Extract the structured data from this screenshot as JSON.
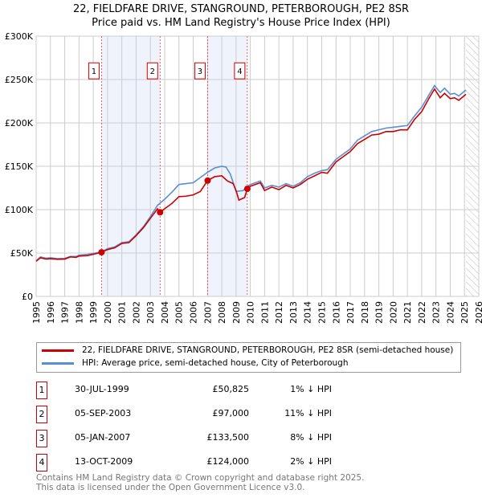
{
  "title": "22, FIELDFARE DRIVE, STANGROUND, PETERBOROUGH, PE2 8SR",
  "subtitle": "Price paid vs. HM Land Registry's House Price Index (HPI)",
  "chart_data": {
    "type": "line",
    "title": "22, FIELDFARE DRIVE, STANGROUND, PETERBOROUGH, PE2 8SR",
    "subtitle": "Price paid vs. HM Land Registry's House Price Index (HPI)",
    "xlim": [
      1995,
      2026
    ],
    "ylim": [
      0,
      300000
    ],
    "x_ticks": [
      "1995",
      "1996",
      "1997",
      "1998",
      "1999",
      "2000",
      "2001",
      "2002",
      "2003",
      "2004",
      "2005",
      "2006",
      "2007",
      "2008",
      "2009",
      "2010",
      "2011",
      "2012",
      "2013",
      "2014",
      "2015",
      "2016",
      "2017",
      "2018",
      "2019",
      "2020",
      "2021",
      "2022",
      "2023",
      "2024",
      "2025",
      "2026"
    ],
    "y_ticks": [
      {
        "v": 0,
        "label": "£0"
      },
      {
        "v": 50000,
        "label": "£50K"
      },
      {
        "v": 100000,
        "label": "£100K"
      },
      {
        "v": 150000,
        "label": "£150K"
      },
      {
        "v": 200000,
        "label": "£200K"
      },
      {
        "v": 250000,
        "label": "£250K"
      },
      {
        "v": 300000,
        "label": "£300K"
      }
    ],
    "grid": true,
    "shaded_periods": [
      [
        1999.58,
        2003.68
      ],
      [
        2007.01,
        2009.79
      ]
    ],
    "forecast_hatch_from": 2025.1,
    "series": [
      {
        "name": "22, FIELDFARE DRIVE, STANGROUND, PETERBOROUGH, PE2 8SR (semi-detached house)",
        "color": "#cc0000",
        "points": [
          [
            1995,
            40500
          ],
          [
            1995.3,
            44500
          ],
          [
            1995.7,
            43000
          ],
          [
            1996,
            43500
          ],
          [
            1996.5,
            42800
          ],
          [
            1997,
            43000
          ],
          [
            1997.4,
            45500
          ],
          [
            1997.8,
            45000
          ],
          [
            1998,
            46500
          ],
          [
            1998.6,
            47000
          ],
          [
            1999,
            48500
          ],
          [
            1999.58,
            50825
          ],
          [
            2000,
            54000
          ],
          [
            2000.5,
            56000
          ],
          [
            2001,
            61000
          ],
          [
            2001.5,
            62000
          ],
          [
            2002,
            70000
          ],
          [
            2002.5,
            79000
          ],
          [
            2003,
            90000
          ],
          [
            2003.5,
            101000
          ],
          [
            2003.68,
            97000
          ],
          [
            2004,
            101000
          ],
          [
            2004.5,
            107000
          ],
          [
            2005,
            115000
          ],
          [
            2005.5,
            115500
          ],
          [
            2006,
            117000
          ],
          [
            2006.5,
            121000
          ],
          [
            2007.01,
            133500
          ],
          [
            2007.5,
            138000
          ],
          [
            2008,
            139000
          ],
          [
            2008.4,
            133000
          ],
          [
            2008.8,
            130000
          ],
          [
            2009,
            122000
          ],
          [
            2009.2,
            111000
          ],
          [
            2009.6,
            114000
          ],
          [
            2009.79,
            124000
          ],
          [
            2010,
            127000
          ],
          [
            2010.7,
            131000
          ],
          [
            2011,
            122000
          ],
          [
            2011.5,
            126000
          ],
          [
            2012,
            123000
          ],
          [
            2012.5,
            128000
          ],
          [
            2013,
            125000
          ],
          [
            2013.5,
            129000
          ],
          [
            2014,
            135000
          ],
          [
            2014.5,
            139000
          ],
          [
            2015,
            143000
          ],
          [
            2015.4,
            142000
          ],
          [
            2016,
            155000
          ],
          [
            2016.5,
            161000
          ],
          [
            2017,
            167000
          ],
          [
            2017.5,
            176000
          ],
          [
            2018,
            181000
          ],
          [
            2018.5,
            186000
          ],
          [
            2019,
            187000
          ],
          [
            2019.5,
            190000
          ],
          [
            2020,
            190000
          ],
          [
            2020.5,
            192000
          ],
          [
            2021,
            192000
          ],
          [
            2021.5,
            204000
          ],
          [
            2022,
            213000
          ],
          [
            2022.5,
            228000
          ],
          [
            2022.9,
            239000
          ],
          [
            2023.3,
            229000
          ],
          [
            2023.6,
            234000
          ],
          [
            2024,
            228000
          ],
          [
            2024.3,
            229000
          ],
          [
            2024.6,
            226000
          ],
          [
            2025.1,
            233000
          ]
        ]
      },
      {
        "name": "HPI: Average price, semi-detached house, City of Peterborough",
        "color": "#5b8fd4",
        "points": [
          [
            1995,
            41000
          ],
          [
            1995.3,
            45500
          ],
          [
            1995.7,
            44000
          ],
          [
            1996,
            44500
          ],
          [
            1996.5,
            43500
          ],
          [
            1997,
            43800
          ],
          [
            1997.4,
            46000
          ],
          [
            1997.8,
            46000
          ],
          [
            1998,
            47500
          ],
          [
            1998.6,
            48500
          ],
          [
            1999,
            49500
          ],
          [
            1999.58,
            51300
          ],
          [
            2000,
            55000
          ],
          [
            2000.5,
            57000
          ],
          [
            2001,
            62000
          ],
          [
            2001.5,
            63000
          ],
          [
            2002,
            71000
          ],
          [
            2002.5,
            80000
          ],
          [
            2003,
            92000
          ],
          [
            2003.5,
            105000
          ],
          [
            2004,
            112000
          ],
          [
            2004.5,
            120000
          ],
          [
            2005,
            129000
          ],
          [
            2005.5,
            130000
          ],
          [
            2006,
            131000
          ],
          [
            2006.5,
            137000
          ],
          [
            2007,
            143000
          ],
          [
            2007.5,
            148000
          ],
          [
            2008,
            150000
          ],
          [
            2008.3,
            149000
          ],
          [
            2008.6,
            141000
          ],
          [
            2009,
            121000
          ],
          [
            2009.5,
            122000
          ],
          [
            2009.79,
            126500
          ],
          [
            2010,
            129000
          ],
          [
            2010.7,
            133000
          ],
          [
            2011,
            125000
          ],
          [
            2011.5,
            128000
          ],
          [
            2012,
            126000
          ],
          [
            2012.5,
            130000
          ],
          [
            2013,
            127000
          ],
          [
            2013.5,
            131000
          ],
          [
            2014,
            138000
          ],
          [
            2014.5,
            142000
          ],
          [
            2015,
            145000
          ],
          [
            2015.4,
            146000
          ],
          [
            2016,
            158000
          ],
          [
            2016.5,
            164000
          ],
          [
            2017,
            170000
          ],
          [
            2017.5,
            180000
          ],
          [
            2018,
            185000
          ],
          [
            2018.5,
            190000
          ],
          [
            2019,
            192000
          ],
          [
            2019.5,
            194000
          ],
          [
            2020,
            195000
          ],
          [
            2020.5,
            196000
          ],
          [
            2021,
            197000
          ],
          [
            2021.5,
            208000
          ],
          [
            2022,
            218000
          ],
          [
            2022.5,
            232000
          ],
          [
            2022.9,
            243000
          ],
          [
            2023.3,
            235000
          ],
          [
            2023.6,
            240000
          ],
          [
            2024,
            233000
          ],
          [
            2024.3,
            234000
          ],
          [
            2024.6,
            231000
          ],
          [
            2025.1,
            238000
          ]
        ]
      }
    ],
    "sales": [
      {
        "n": "1",
        "x": 1999.58,
        "value": 50825,
        "date": "30-JUL-1999",
        "price": "£50,825",
        "diff": "1% ↓ HPI"
      },
      {
        "n": "2",
        "x": 2003.68,
        "value": 97000,
        "date": "05-SEP-2003",
        "price": "£97,000",
        "diff": "11% ↓ HPI"
      },
      {
        "n": "3",
        "x": 2007.01,
        "value": 133500,
        "date": "05-JAN-2007",
        "price": "£133,500",
        "diff": "8% ↓ HPI"
      },
      {
        "n": "4",
        "x": 2009.79,
        "value": 124000,
        "date": "13-OCT-2009",
        "price": "£124,000",
        "diff": "2% ↓ HPI"
      }
    ],
    "marker_label_value": 260000,
    "legend_placement": "below"
  },
  "legend": {
    "property": "22, FIELDFARE DRIVE, STANGROUND, PETERBOROUGH, PE2 8SR (semi-detached house)",
    "hpi": "HPI: Average price, semi-detached house, City of Peterborough"
  },
  "footer": {
    "line1": "Contains HM Land Registry data © Crown copyright and database right 2025.",
    "line2": "This data is licensed under the Open Government Licence v3.0."
  }
}
